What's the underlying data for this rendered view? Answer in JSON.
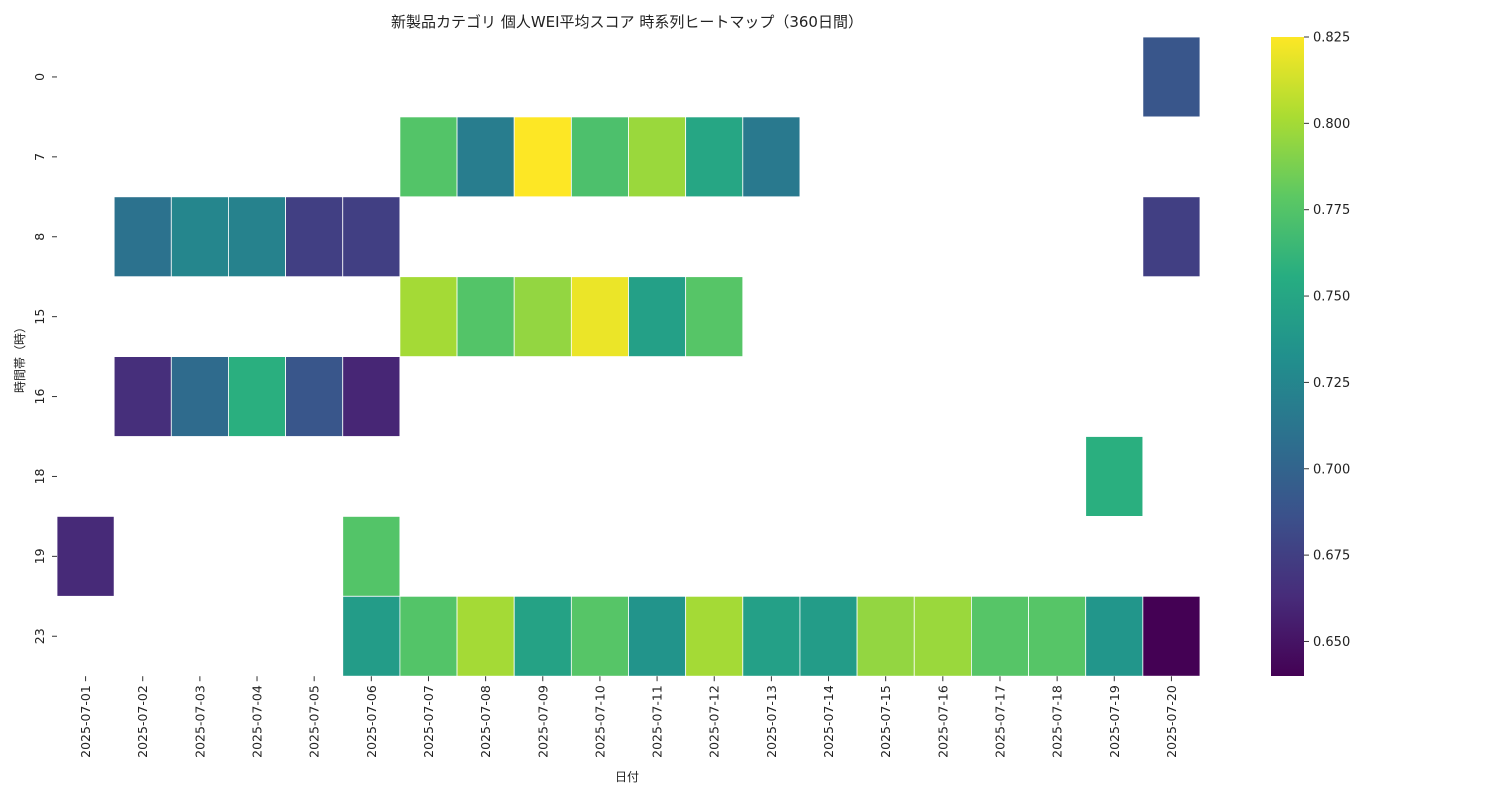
{
  "chart_data": {
    "type": "heatmap",
    "title": "新製品カテゴリ 個人WEI平均スコア 時系列ヒートマップ（360日間）",
    "xlabel": "日付",
    "ylabel": "時間帯（時）",
    "x": [
      "2025-07-01",
      "2025-07-02",
      "2025-07-03",
      "2025-07-04",
      "2025-07-05",
      "2025-07-06",
      "2025-07-07",
      "2025-07-08",
      "2025-07-09",
      "2025-07-10",
      "2025-07-11",
      "2025-07-12",
      "2025-07-13",
      "2025-07-14",
      "2025-07-15",
      "2025-07-16",
      "2025-07-17",
      "2025-07-18",
      "2025-07-19",
      "2025-07-20"
    ],
    "y": [
      "0",
      "7",
      "8",
      "15",
      "16",
      "18",
      "19",
      "23"
    ],
    "values": [
      [
        null,
        null,
        null,
        null,
        null,
        null,
        null,
        null,
        null,
        null,
        null,
        null,
        null,
        null,
        null,
        null,
        null,
        null,
        null,
        0.69
      ],
      [
        null,
        null,
        null,
        null,
        null,
        null,
        0.775,
        0.718,
        0.825,
        0.772,
        0.797,
        0.75,
        0.715,
        null,
        null,
        null,
        null,
        null,
        null,
        null
      ],
      [
        null,
        0.71,
        0.725,
        0.722,
        0.675,
        0.675,
        null,
        null,
        null,
        null,
        null,
        null,
        null,
        null,
        null,
        null,
        null,
        null,
        null,
        0.675
      ],
      [
        null,
        null,
        null,
        null,
        null,
        null,
        0.8,
        0.775,
        0.795,
        0.82,
        0.745,
        0.776,
        null,
        null,
        null,
        null,
        null,
        null,
        null,
        null
      ],
      [
        null,
        0.665,
        0.705,
        0.757,
        0.69,
        0.66,
        null,
        null,
        null,
        null,
        null,
        null,
        null,
        null,
        null,
        null,
        null,
        null,
        null,
        null
      ],
      [
        null,
        null,
        null,
        null,
        null,
        null,
        null,
        null,
        null,
        null,
        null,
        null,
        null,
        null,
        null,
        null,
        null,
        null,
        0.757,
        null
      ],
      [
        0.662,
        null,
        null,
        null,
        null,
        0.775,
        null,
        null,
        null,
        null,
        null,
        null,
        null,
        null,
        null,
        null,
        null,
        null,
        null,
        null
      ],
      [
        null,
        null,
        null,
        null,
        null,
        0.742,
        0.775,
        0.8,
        0.747,
        0.776,
        0.736,
        0.8,
        0.745,
        0.742,
        0.795,
        0.797,
        0.776,
        0.776,
        0.737,
        0.64
      ]
    ],
    "vmin": 0.64,
    "vmax": 0.825,
    "colorbar_ticks": [
      "0.650",
      "0.675",
      "0.700",
      "0.725",
      "0.750",
      "0.775",
      "0.800",
      "0.825"
    ],
    "colormap": "viridis",
    "grid": false
  }
}
